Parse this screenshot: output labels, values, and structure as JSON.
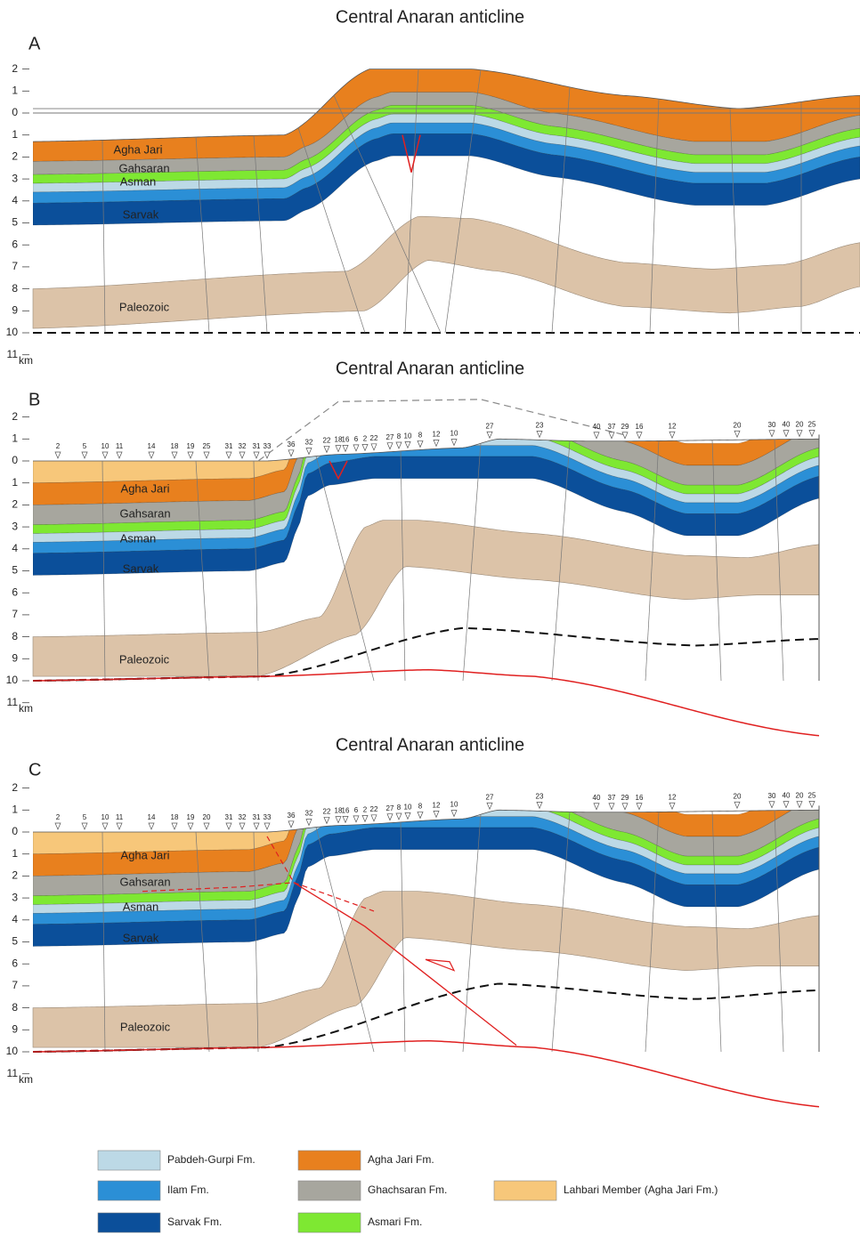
{
  "panels": [
    {
      "title": "Central Anaran anticline",
      "label": "A",
      "depth_ticks": [
        2,
        1,
        0,
        1,
        2,
        3,
        4,
        5,
        6,
        7,
        8,
        9,
        10,
        11
      ],
      "unit": "km",
      "formation_labels": [
        "Agha Jari",
        "Gahsaran",
        "Asman",
        "Sarvak",
        "Paleozoic"
      ],
      "dip_labels": []
    },
    {
      "title": "Central Anaran anticline",
      "label": "B",
      "depth_ticks": [
        2,
        1,
        0,
        1,
        2,
        3,
        4,
        5,
        6,
        7,
        8,
        9,
        10,
        11
      ],
      "unit": "km",
      "formation_labels": [
        "Agha Jari",
        "Gahsaran",
        "Asman",
        "Sarvak",
        "Paleozoic"
      ],
      "dip_labels": [
        "2",
        "5",
        "10",
        "11",
        "14",
        "18",
        "19",
        "25",
        "31",
        "32",
        "31",
        "33",
        "36",
        "32",
        "22",
        "18",
        "16",
        "6",
        "2",
        "22",
        "27",
        "8",
        "10",
        "8",
        "12",
        "10",
        "27",
        "23",
        "40",
        "37",
        "29",
        "16",
        "12",
        "20",
        "30",
        "40",
        "20",
        "25"
      ]
    },
    {
      "title": "Central Anaran anticline",
      "label": "C",
      "depth_ticks": [
        2,
        1,
        0,
        1,
        2,
        3,
        4,
        5,
        6,
        7,
        8,
        9,
        10,
        11
      ],
      "unit": "km",
      "formation_labels": [
        "Agha Jari",
        "Gahsaran",
        "Asman",
        "Sarvak",
        "Paleozoic"
      ],
      "dip_labels": [
        "2",
        "5",
        "10",
        "11",
        "14",
        "18",
        "19",
        "20",
        "31",
        "32",
        "31",
        "33",
        "36",
        "32",
        "22",
        "18",
        "16",
        "6",
        "2",
        "22",
        "27",
        "8",
        "10",
        "8",
        "12",
        "10",
        "27",
        "23",
        "40",
        "37",
        "29",
        "16",
        "12",
        "20",
        "30",
        "40",
        "20",
        "25"
      ]
    }
  ],
  "legend": [
    "Pabdeh-Gurpi Fm.",
    "Ilam Fm.",
    "Sarvak Fm.",
    "Agha Jari Fm.",
    "Ghachsaran Fm.",
    "Asmari Fm.",
    "Lahbari Member (Agha Jari Fm.)"
  ]
}
